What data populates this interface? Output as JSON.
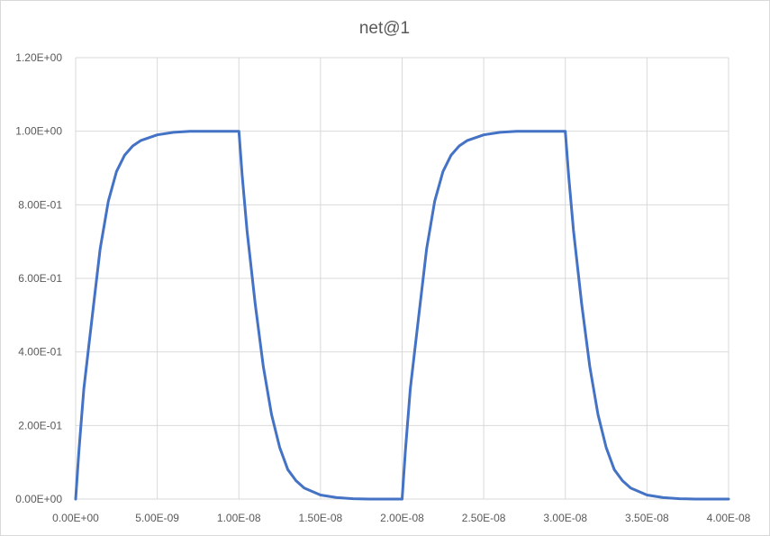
{
  "chart_data": {
    "type": "line",
    "title": "net@1",
    "xlabel": "",
    "ylabel": "",
    "xlim": [
      0,
      4e-08
    ],
    "ylim": [
      0,
      1.2
    ],
    "x_ticks": [
      0,
      5e-09,
      1e-08,
      1.5e-08,
      2e-08,
      2.5e-08,
      3e-08,
      3.5e-08,
      4e-08
    ],
    "x_tick_labels": [
      "0.00E+00",
      "5.00E-09",
      "1.00E-08",
      "1.50E-08",
      "2.00E-08",
      "2.50E-08",
      "3.00E-08",
      "3.50E-08",
      "4.00E-08"
    ],
    "y_ticks": [
      0,
      0.2,
      0.4,
      0.6,
      0.8,
      1.0,
      1.2
    ],
    "y_tick_labels": [
      "0.00E+00",
      "2.00E-01",
      "4.00E-01",
      "6.00E-01",
      "8.00E-01",
      "1.00E+00",
      "1.20E+00"
    ],
    "grid": true,
    "legend": "none",
    "series": [
      {
        "color": "#4472c4",
        "x": [
          0,
          2e-10,
          5e-10,
          1e-09,
          1.5e-09,
          2e-09,
          2.5e-09,
          3e-09,
          3.5e-09,
          4e-09,
          5e-09,
          6e-09,
          7e-09,
          8e-09,
          9e-09,
          1e-08,
          1.02e-08,
          1.05e-08,
          1.1e-08,
          1.15e-08,
          1.2e-08,
          1.25e-08,
          1.3e-08,
          1.35e-08,
          1.4e-08,
          1.5e-08,
          1.6e-08,
          1.7e-08,
          1.8e-08,
          1.9e-08,
          2e-08,
          2.02e-08,
          2.05e-08,
          2.1e-08,
          2.15e-08,
          2.2e-08,
          2.25e-08,
          2.3e-08,
          2.35e-08,
          2.4e-08,
          2.5e-08,
          2.6e-08,
          2.7e-08,
          2.8e-08,
          2.9e-08,
          3e-08,
          3.02e-08,
          3.05e-08,
          3.1e-08,
          3.15e-08,
          3.2e-08,
          3.25e-08,
          3.3e-08,
          3.35e-08,
          3.4e-08,
          3.5e-08,
          3.6e-08,
          3.7e-08,
          3.8e-08,
          3.9e-08,
          4e-08
        ],
        "y": [
          0,
          0.13,
          0.3,
          0.49,
          0.68,
          0.81,
          0.89,
          0.935,
          0.96,
          0.975,
          0.99,
          0.997,
          1.0,
          1.0,
          1.0,
          1.0,
          0.88,
          0.73,
          0.53,
          0.36,
          0.23,
          0.14,
          0.08,
          0.05,
          0.03,
          0.011,
          0.004,
          0.001,
          0.0,
          0.0,
          0.0,
          0.13,
          0.3,
          0.49,
          0.68,
          0.81,
          0.89,
          0.935,
          0.96,
          0.975,
          0.99,
          0.997,
          1.0,
          1.0,
          1.0,
          1.0,
          0.88,
          0.73,
          0.53,
          0.36,
          0.23,
          0.14,
          0.08,
          0.05,
          0.03,
          0.011,
          0.004,
          0.001,
          0.0,
          0.0,
          0.0
        ]
      }
    ]
  }
}
